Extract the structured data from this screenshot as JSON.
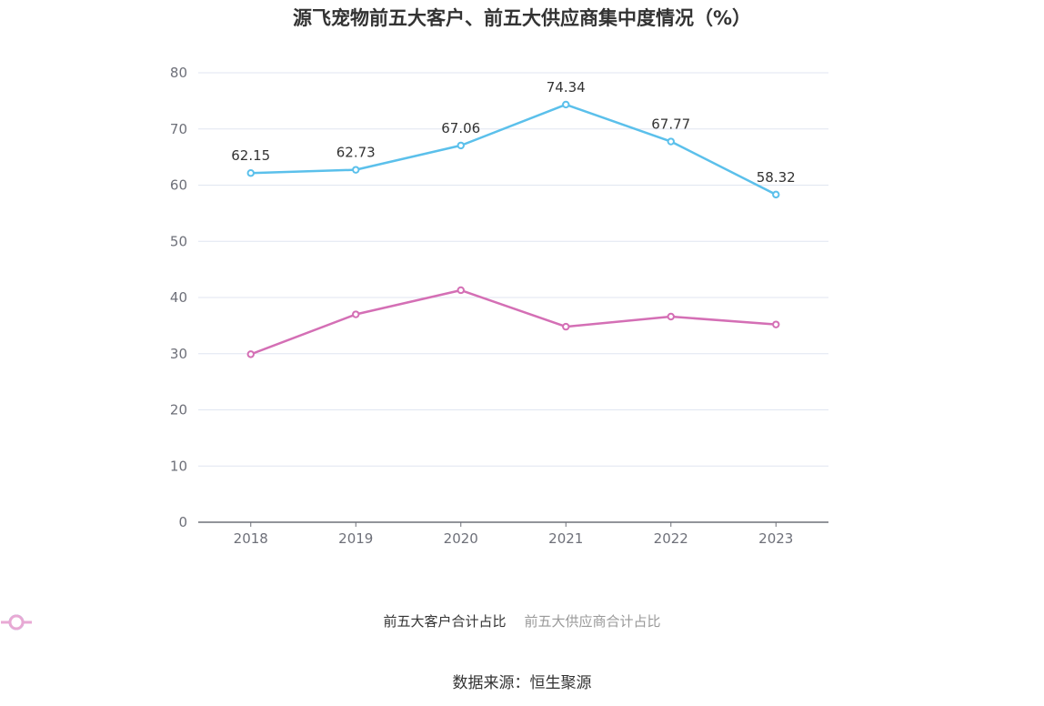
{
  "chart_data": {
    "type": "line",
    "title": "源飞宠物前五大客户、前五大供应商集中度情况（%）",
    "categories": [
      "2018",
      "2019",
      "2020",
      "2021",
      "2022",
      "2023"
    ],
    "series": [
      {
        "name": "前五大客户合计占比",
        "color": "#5bc0eb",
        "values": [
          62.15,
          62.73,
          67.06,
          74.34,
          67.77,
          58.32
        ],
        "show_labels": true
      },
      {
        "name": "前五大供应商合计占比",
        "color": "#d46fb5",
        "legend_color": "#e8a9d4",
        "values": [
          29.9,
          37.0,
          41.3,
          34.8,
          36.6,
          35.2
        ],
        "show_labels": false
      }
    ],
    "ylim": [
      0,
      80
    ],
    "yticks": [
      0,
      10,
      20,
      30,
      40,
      50,
      60,
      70,
      80
    ],
    "grid": true,
    "legend_position": "bottom"
  },
  "source": "数据来源：恒生聚源"
}
